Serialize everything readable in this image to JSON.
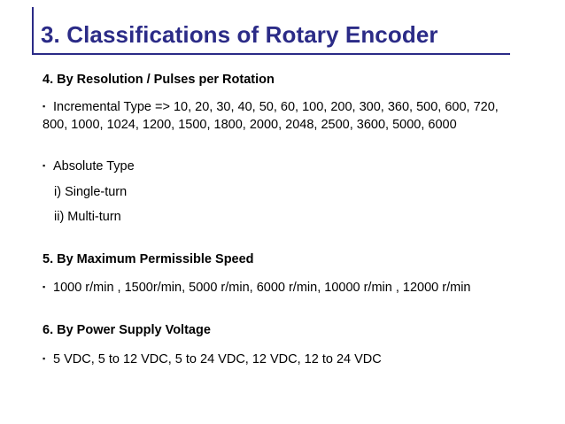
{
  "title": "3. Classifications of Rotary Encoder",
  "bullet_glyph": "▪",
  "sections": {
    "resolution": {
      "heading": "4.  By Resolution / Pulses per Rotation",
      "incremental": "Incremental Type => 10, 20, 30, 40, 50, 60, 100, 200, 300, 360, 500, 600, 720, 800, 1000, 1024, 1200, 1500, 1800, 2000, 2048, 2500, 3600, 5000, 6000",
      "absolute": "Absolute Type",
      "single_turn": "i) Single-turn",
      "multi_turn": "ii) Multi-turn"
    },
    "speed": {
      "heading": "5.  By Maximum Permissible Speed",
      "values": "1000 r/min , 1500r/min, 5000 r/min, 6000 r/min, 10000 r/min , 12000 r/min"
    },
    "voltage": {
      "heading": "6.  By Power Supply Voltage",
      "values": "5 VDC, 5 to 12 VDC, 5 to 24 VDC, 12 VDC, 12 to 24 VDC"
    }
  },
  "colors": {
    "title": "#2b2b87",
    "text": "#000000"
  }
}
